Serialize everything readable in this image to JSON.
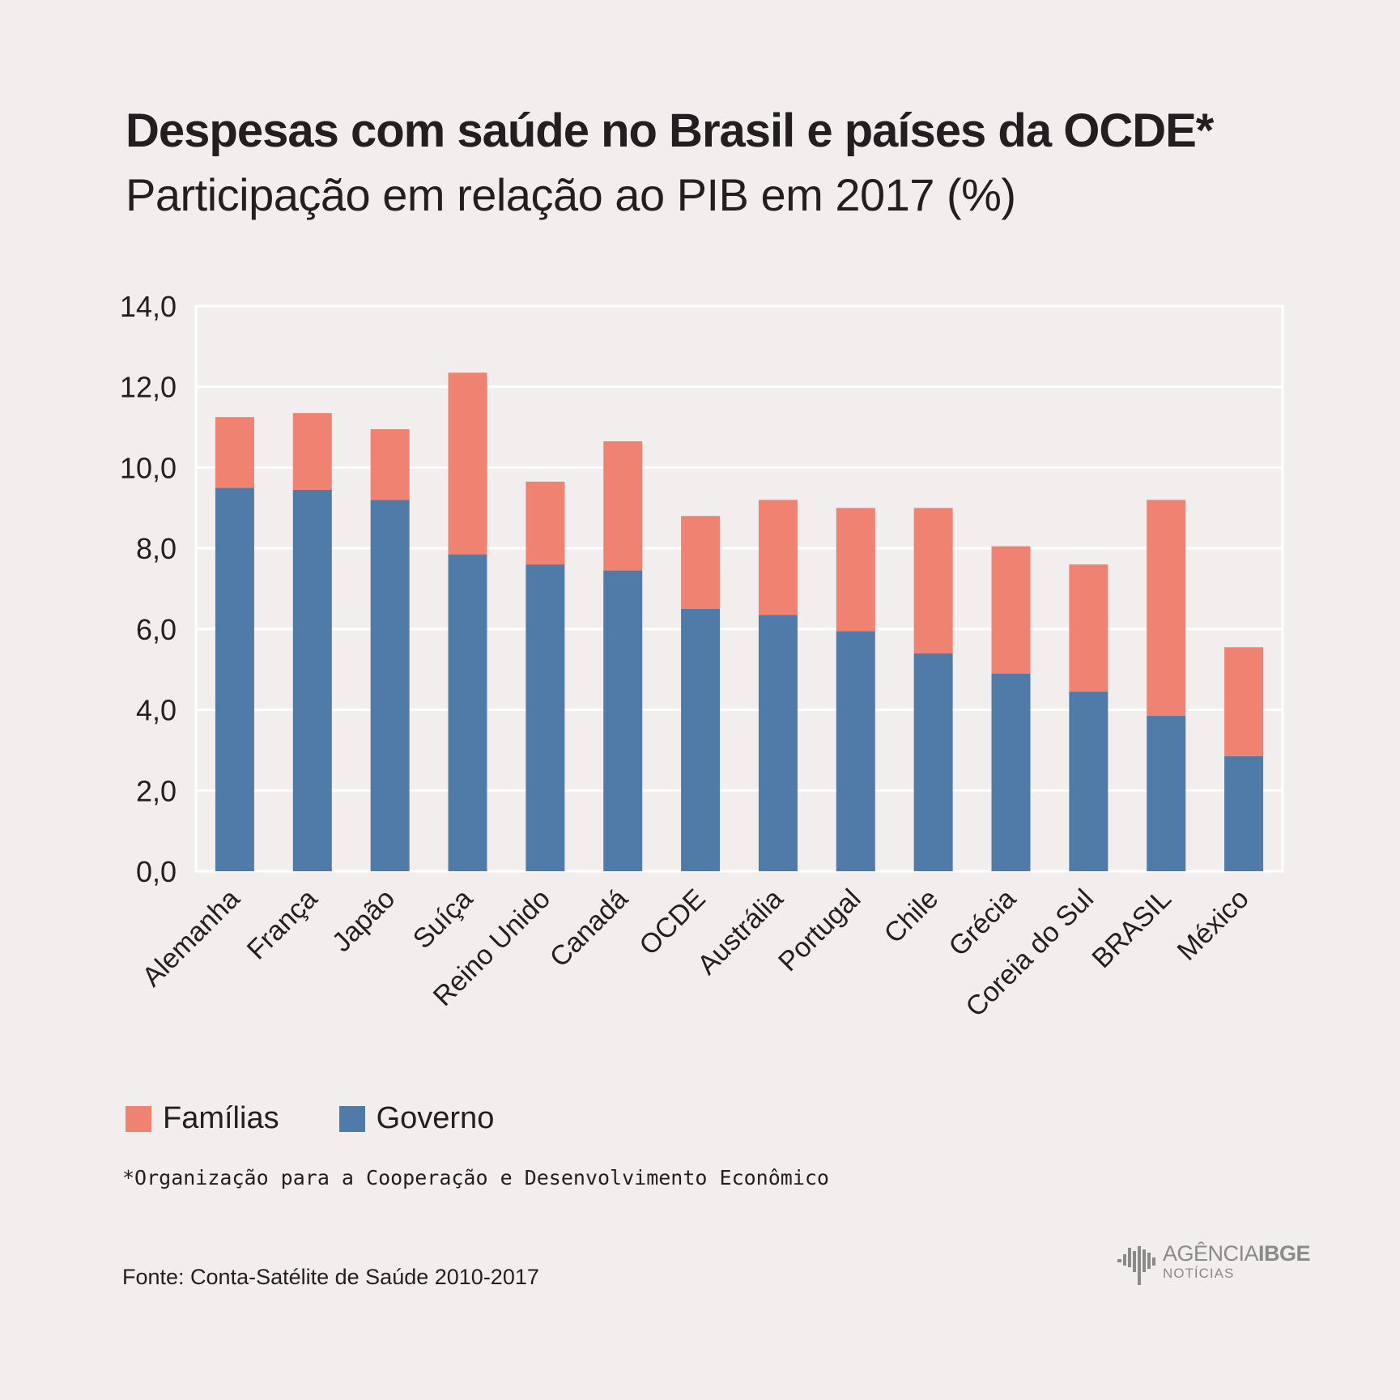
{
  "title": "Despesas com saúde no Brasil e países da OCDE*",
  "subtitle": "Participação em relação ao PIB em 2017 (%)",
  "colors": {
    "familias": "#ef8270",
    "governo": "#507aa7",
    "grid": "#ffffff",
    "background": "#f1eeed"
  },
  "legend": {
    "familias": "Famílias",
    "governo": "Governo"
  },
  "footnote": "*Organização para a Cooperação e Desenvolvimento Econômico",
  "source": "Fonte: Conta-Satélite de Saúde 2010-2017",
  "logo": {
    "brand_light": "AGÊNCIA",
    "brand_bold": "IBGE",
    "sub": "NOTÍCIAS",
    "icon": "ibge-logo-icon"
  },
  "chart_data": {
    "type": "bar",
    "stacked": true,
    "categories": [
      "Alemanha",
      "França",
      "Japão",
      "Suíça",
      "Reino Unido",
      "Canadá",
      "OCDE",
      "Austrália",
      "Portugal",
      "Chile",
      "Grécia",
      "Coreia do Sul",
      "BRASIL",
      "México"
    ],
    "series": [
      {
        "name": "Governo",
        "values": [
          9.5,
          9.45,
          9.2,
          7.85,
          7.6,
          7.45,
          6.5,
          6.35,
          5.95,
          5.4,
          4.9,
          4.45,
          3.85,
          2.85
        ]
      },
      {
        "name": "Famílias",
        "values": [
          1.75,
          1.9,
          1.75,
          4.5,
          2.05,
          3.2,
          2.3,
          2.85,
          3.05,
          3.6,
          3.15,
          3.15,
          5.35,
          2.7
        ]
      }
    ],
    "yticks": [
      "0,0",
      "2,0",
      "4,0",
      "6,0",
      "8,0",
      "10,0",
      "12,0",
      "14,0"
    ],
    "ylim": [
      0,
      14
    ],
    "grid": true,
    "legend_position": "bottom-left"
  }
}
